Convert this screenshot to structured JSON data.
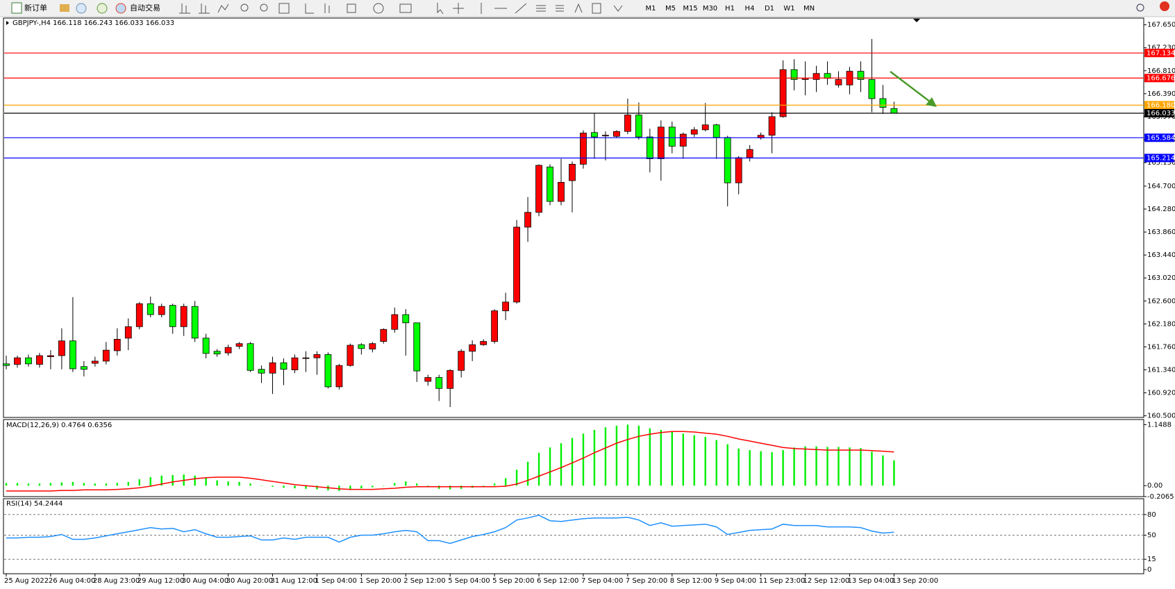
{
  "toolbar": {
    "new_order": "新订单",
    "auto_trading": "自动交易",
    "timeframes": [
      "M1",
      "M5",
      "M15",
      "M30",
      "H1",
      "H4",
      "D1",
      "W1",
      "MN"
    ]
  },
  "chart_data": [
    {
      "type": "candlestick",
      "title": "GBPJPY-,H4 166.118 166.243 166.033 166.033",
      "categories": [
        "25 Aug 2022",
        null,
        null,
        null,
        "26 Aug 04:00",
        null,
        null,
        null,
        "28 Aug 23:00",
        null,
        null,
        null,
        "29 Aug 12:00",
        null,
        null,
        null,
        "30 Aug 04:00",
        null,
        null,
        null,
        "30 Aug 20:00",
        null,
        null,
        null,
        "31 Aug 12:00",
        null,
        null,
        null,
        "1 Sep 04:00",
        null,
        null,
        null,
        "1 Sep 20:00",
        null,
        null,
        null,
        "2 Sep 12:00",
        null,
        null,
        null,
        "5 Sep 04:00",
        null,
        null,
        null,
        "5 Sep 20:00",
        null,
        null,
        null,
        "6 Sep 12:00",
        null,
        null,
        null,
        "7 Sep 04:00",
        null,
        null,
        null,
        "7 Sep 20:00",
        null,
        null,
        null,
        "8 Sep 12:00",
        null,
        null,
        null,
        "9 Sep 04:00",
        null,
        null,
        null,
        "11 Sep 23:00",
        null,
        null,
        null,
        "12 Sep 12:00",
        null,
        null,
        null,
        "13 Sep 04:00",
        null,
        null,
        null,
        "13 Sep 20:00"
      ],
      "open": [
        161.45,
        161.44,
        161.56,
        161.44,
        161.58,
        161.6,
        161.87,
        161.4,
        161.46,
        161.5,
        161.69,
        161.92,
        162.13,
        162.55,
        162.35,
        162.52,
        162.13,
        162.5,
        161.92,
        161.68,
        161.65,
        161.77,
        161.82,
        161.35,
        161.28,
        161.47,
        161.34,
        161.55,
        161.56,
        161.62,
        161.03,
        161.42,
        161.8,
        161.72,
        161.86,
        162.08,
        162.35,
        162.2,
        161.13,
        161.2,
        161.0,
        161.33,
        161.68,
        161.8,
        161.86,
        162.42,
        162.58,
        163.95,
        164.22,
        165.05,
        164.42,
        164.8,
        165.1,
        165.68,
        165.62,
        165.61,
        165.7,
        166.0,
        165.6,
        165.2,
        165.78,
        165.43,
        165.65,
        165.73,
        165.82,
        165.59,
        164.76,
        165.22,
        165.58,
        165.63,
        165.97,
        166.83,
        166.65,
        166.65,
        166.76,
        166.55,
        166.55,
        166.8,
        166.65,
        166.3,
        166.118
      ],
      "high": [
        161.6,
        161.6,
        161.62,
        161.65,
        161.7,
        162.1,
        162.67,
        161.5,
        161.58,
        161.85,
        162.1,
        162.28,
        162.58,
        162.68,
        162.55,
        162.55,
        162.55,
        162.6,
        162.0,
        161.72,
        161.8,
        161.85,
        161.85,
        161.42,
        161.58,
        161.55,
        161.62,
        161.68,
        161.68,
        161.66,
        161.45,
        161.82,
        161.83,
        161.85,
        162.1,
        162.48,
        162.45,
        162.2,
        161.25,
        161.25,
        161.35,
        161.72,
        161.88,
        161.9,
        162.45,
        162.75,
        164.08,
        164.5,
        165.1,
        165.1,
        165.2,
        165.15,
        165.72,
        166.03,
        165.7,
        165.72,
        166.3,
        166.23,
        165.75,
        165.9,
        165.88,
        165.68,
        165.78,
        166.22,
        165.84,
        165.62,
        165.25,
        165.45,
        165.68,
        166.05,
        167.0,
        167.02,
        166.98,
        166.9,
        166.98,
        166.8,
        166.88,
        166.98,
        167.39,
        166.55,
        166.243
      ],
      "low": [
        161.35,
        161.38,
        161.4,
        161.38,
        161.35,
        161.35,
        161.3,
        161.22,
        161.4,
        161.44,
        161.6,
        161.7,
        162.08,
        162.3,
        162.3,
        162.0,
        161.96,
        161.85,
        161.55,
        161.58,
        161.6,
        161.72,
        161.3,
        161.1,
        160.9,
        161.06,
        161.28,
        161.3,
        161.25,
        161.0,
        160.98,
        161.4,
        161.62,
        161.66,
        161.82,
        162.02,
        161.6,
        161.12,
        161.05,
        160.77,
        160.66,
        161.2,
        161.5,
        161.78,
        161.82,
        162.25,
        162.55,
        163.68,
        164.15,
        164.35,
        164.35,
        164.22,
        165.02,
        165.2,
        165.17,
        165.58,
        165.65,
        165.55,
        164.95,
        164.8,
        165.3,
        165.2,
        165.6,
        165.7,
        165.2,
        164.33,
        164.55,
        165.15,
        165.55,
        165.3,
        165.95,
        166.45,
        166.36,
        166.42,
        166.55,
        166.5,
        166.38,
        166.42,
        166.05,
        166.02,
        166.033
      ],
      "close": [
        161.42,
        161.56,
        161.45,
        161.6,
        161.6,
        161.87,
        161.36,
        161.35,
        161.5,
        161.7,
        161.9,
        162.13,
        162.55,
        162.35,
        162.5,
        162.13,
        162.5,
        161.92,
        161.64,
        161.63,
        161.75,
        161.82,
        161.33,
        161.28,
        161.47,
        161.35,
        161.56,
        161.56,
        161.62,
        161.03,
        161.42,
        161.79,
        161.73,
        161.82,
        162.08,
        162.35,
        162.2,
        161.32,
        161.2,
        161.0,
        161.33,
        161.68,
        161.8,
        161.86,
        162.42,
        162.58,
        163.95,
        164.22,
        165.08,
        164.42,
        164.77,
        165.1,
        165.67,
        165.6,
        165.63,
        165.7,
        166.0,
        165.6,
        165.2,
        165.78,
        165.43,
        165.65,
        165.73,
        165.82,
        165.59,
        164.76,
        165.22,
        165.37,
        165.63,
        165.97,
        166.83,
        166.65,
        166.67,
        166.76,
        166.67,
        166.65,
        166.8,
        166.65,
        166.3,
        166.14,
        166.033
      ],
      "up_color": "#ff0000",
      "down_color": "#00ff00",
      "ylim": [
        160.47,
        167.76
      ],
      "yticks": [
        {
          "value": 167.65,
          "label": "167.650"
        },
        {
          "value": 167.23,
          "label": "167.230"
        },
        {
          "value": 166.81,
          "label": "166.810"
        },
        {
          "value": 166.39,
          "label": "166.390"
        },
        {
          "value": 165.97,
          "label": "165.970"
        },
        {
          "value": 165.55,
          "label": "165.550"
        },
        {
          "value": 165.13,
          "label": "165.130"
        },
        {
          "value": 164.7,
          "label": "164.700"
        },
        {
          "value": 164.28,
          "label": "164.280"
        },
        {
          "value": 163.86,
          "label": "163.860"
        },
        {
          "value": 163.44,
          "label": "163.440"
        },
        {
          "value": 163.02,
          "label": "163.020"
        },
        {
          "value": 162.6,
          "label": "162.600"
        },
        {
          "value": 162.18,
          "label": "162.180"
        },
        {
          "value": 161.76,
          "label": "161.760"
        },
        {
          "value": 161.34,
          "label": "161.340"
        },
        {
          "value": 160.92,
          "label": "160.920"
        },
        {
          "value": 160.5,
          "label": "160.500"
        }
      ],
      "hlines": [
        {
          "value": 167.134,
          "color": "#ff0000"
        },
        {
          "value": 166.676,
          "color": "#ff0000"
        },
        {
          "value": 166.18,
          "label": "166.180",
          "color": "#ffa500"
        },
        {
          "value": 166.033,
          "color": "#000000"
        },
        {
          "value": 165.584,
          "color": "#0000ff"
        },
        {
          "value": 165.214,
          "color": "#0000ff"
        }
      ]
    },
    {
      "type": "macd",
      "title": "MACD(12,26,9) 0.4764 0.6356",
      "histogram": {
        "color": "#00ee00",
        "values": [
          0.05,
          0.05,
          0.04,
          0.04,
          0.05,
          0.06,
          0.07,
          0.05,
          0.04,
          0.04,
          0.05,
          0.07,
          0.12,
          0.16,
          0.19,
          0.2,
          0.21,
          0.19,
          0.14,
          0.1,
          0.08,
          0.07,
          0.04,
          0.0,
          -0.02,
          -0.04,
          -0.05,
          -0.06,
          -0.07,
          -0.09,
          -0.1,
          -0.07,
          -0.05,
          -0.03,
          0.0,
          0.05,
          0.08,
          0.04,
          -0.03,
          -0.06,
          -0.07,
          -0.06,
          -0.04,
          -0.03,
          0.04,
          0.14,
          0.3,
          0.45,
          0.62,
          0.72,
          0.8,
          0.9,
          0.98,
          1.05,
          1.1,
          1.13,
          1.15,
          1.13,
          1.08,
          1.05,
          1.02,
          0.98,
          0.95,
          0.92,
          0.86,
          0.78,
          0.7,
          0.67,
          0.65,
          0.63,
          0.67,
          0.72,
          0.74,
          0.74,
          0.73,
          0.73,
          0.72,
          0.71,
          0.64,
          0.57,
          0.4764
        ]
      },
      "signal": {
        "color": "#ff0000",
        "values": [
          -0.1,
          -0.1,
          -0.1,
          -0.1,
          -0.1,
          -0.09,
          -0.09,
          -0.08,
          -0.08,
          -0.08,
          -0.07,
          -0.06,
          -0.04,
          -0.01,
          0.03,
          0.07,
          0.1,
          0.13,
          0.15,
          0.16,
          0.16,
          0.16,
          0.14,
          0.11,
          0.08,
          0.05,
          0.02,
          0.0,
          -0.02,
          -0.04,
          -0.06,
          -0.07,
          -0.07,
          -0.07,
          -0.06,
          -0.05,
          -0.03,
          -0.02,
          -0.02,
          -0.02,
          -0.02,
          -0.02,
          -0.02,
          -0.02,
          -0.02,
          -0.01,
          0.03,
          0.1,
          0.18,
          0.26,
          0.34,
          0.43,
          0.52,
          0.62,
          0.71,
          0.8,
          0.87,
          0.93,
          0.97,
          1.0,
          1.02,
          1.02,
          1.01,
          0.99,
          0.97,
          0.93,
          0.88,
          0.84,
          0.8,
          0.76,
          0.72,
          0.7,
          0.69,
          0.68,
          0.67,
          0.67,
          0.67,
          0.67,
          0.66,
          0.65,
          0.6356
        ]
      },
      "ylim": [
        -0.2065,
        1.233
      ],
      "yticks": [
        1.1488,
        {
          "value": 0,
          "label": "0.00"
        },
        -0.2065
      ]
    },
    {
      "type": "line",
      "title": "RSI(14) 54.2444",
      "color": "#1e90ff",
      "values": [
        46,
        46,
        47,
        47,
        48,
        51,
        44,
        44,
        46,
        49,
        52,
        55,
        58,
        61,
        59,
        60,
        55,
        58,
        52,
        47,
        47,
        48,
        49,
        43,
        43,
        46,
        44,
        47,
        47,
        47,
        40,
        47,
        50,
        50,
        52,
        55,
        57,
        55,
        42,
        42,
        38,
        43,
        48,
        51,
        55,
        61,
        72,
        75,
        79,
        71,
        70,
        72,
        74,
        75,
        75,
        75,
        76,
        72,
        64,
        68,
        63,
        64,
        65,
        66,
        62,
        51,
        54,
        57,
        58,
        59,
        66,
        64,
        64,
        64,
        62,
        62,
        62,
        61,
        56,
        53,
        54.2444
      ],
      "ylim": [
        -6,
        103
      ],
      "yticks": [
        80,
        50,
        15,
        0
      ],
      "levels": [
        80,
        50,
        15
      ]
    }
  ]
}
